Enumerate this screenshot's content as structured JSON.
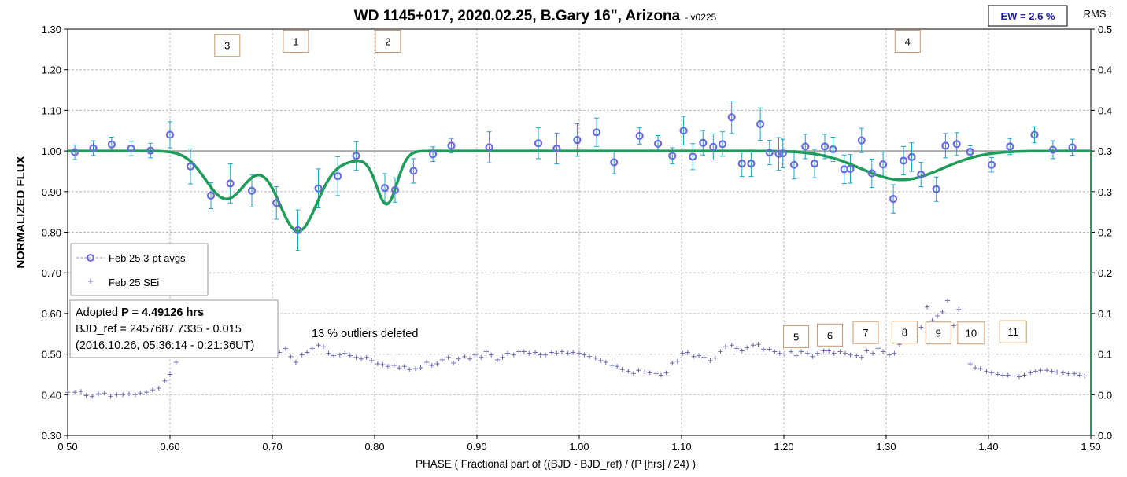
{
  "chart_data": {
    "type": "scatter",
    "title": "WD 1145+017, 2020.02.25, B.Gary 16\", Arizona",
    "subtitle": "- v0225",
    "ew_label": "EW = 2.6 %",
    "right_axis_title": "RMS i",
    "xlabel": "PHASE ( Fractional part of ((BJD - BJD_ref) / (P [hrs] / 24) )",
    "ylabel": "NORMALIZED FLUX",
    "xlim": [
      0.5,
      1.5
    ],
    "ylim": [
      0.3,
      1.3
    ],
    "y2lim": [
      0.0,
      0.5
    ],
    "x_ticks": [
      "0.50",
      "0.60",
      "0.70",
      "0.80",
      "0.90",
      "1.00",
      "1.10",
      "1.20",
      "1.30",
      "1.40",
      "1.50"
    ],
    "y_ticks": [
      "0.30",
      "0.40",
      "0.50",
      "0.60",
      "0.70",
      "0.80",
      "0.90",
      "1.00",
      "1.10",
      "1.20",
      "1.30"
    ],
    "y2_ticks": [
      "0.0",
      "0.0",
      "0.1",
      "0.1",
      "0.2",
      "0.2",
      "0.3",
      "0.3",
      "0.4",
      "0.4",
      "0.5"
    ],
    "grid": true,
    "legend": {
      "placement": "left",
      "entries": [
        "Feb 25 3-pt avgs",
        "Feb 25 SEi"
      ]
    },
    "info_box": {
      "line1_prefix": "Adopted ",
      "line1_bold": "P = 4.49126 hrs",
      "line2": "BJD_ref = 2457687.7335 - 0.015",
      "line3": "(2016.10.26, 05:36:14 - 0:21:36UT)"
    },
    "outlier_note": "13 % outliers deleted",
    "dip_labels": [
      {
        "label": "3",
        "x": 0.656,
        "y": 1.26
      },
      {
        "label": "1",
        "x": 0.723,
        "y": 1.27
      },
      {
        "label": "2",
        "x": 0.813,
        "y": 1.27
      },
      {
        "label": "4",
        "x": 1.321,
        "y": 1.27
      },
      {
        "label": "5",
        "x": 1.212,
        "y": 0.543
      },
      {
        "label": "6",
        "x": 1.245,
        "y": 0.547
      },
      {
        "label": "7",
        "x": 1.28,
        "y": 0.553
      },
      {
        "label": "8",
        "x": 1.318,
        "y": 0.554
      },
      {
        "label": "9",
        "x": 1.351,
        "y": 0.552
      },
      {
        "label": "10",
        "x": 1.383,
        "y": 0.552
      },
      {
        "label": "11",
        "x": 1.424,
        "y": 0.555
      }
    ],
    "model_baseline": 1.0,
    "series": [
      {
        "name": "Feb 25 3-pt avgs",
        "style": "circle",
        "color": "#6b6be0",
        "error_color": "#1ba3c6",
        "points": [
          [
            0.507,
            0.997,
            0.018
          ],
          [
            0.525,
            1.007,
            0.018
          ],
          [
            0.543,
            1.016,
            0.018
          ],
          [
            0.562,
            1.006,
            0.018
          ],
          [
            0.581,
            1.001,
            0.018
          ],
          [
            0.6,
            1.04,
            0.032
          ],
          [
            0.62,
            0.962,
            0.043
          ],
          [
            0.64,
            0.89,
            0.032
          ],
          [
            0.659,
            0.92,
            0.048
          ],
          [
            0.68,
            0.902,
            0.04
          ],
          [
            0.704,
            0.872,
            0.04
          ],
          [
            0.725,
            0.805,
            0.05
          ],
          [
            0.745,
            0.908,
            0.048
          ],
          [
            0.764,
            0.938,
            0.048
          ],
          [
            0.782,
            0.988,
            0.035
          ],
          [
            0.81,
            0.909,
            0.035
          ],
          [
            0.82,
            0.904,
            0.03
          ],
          [
            0.838,
            0.951,
            0.03
          ],
          [
            0.857,
            0.992,
            0.018
          ],
          [
            0.875,
            1.013,
            0.018
          ],
          [
            0.912,
            1.009,
            0.038
          ],
          [
            0.96,
            1.019,
            0.038
          ],
          [
            0.978,
            1.006,
            0.038
          ],
          [
            0.998,
            1.027,
            0.04
          ],
          [
            1.017,
            1.046,
            0.035
          ],
          [
            1.034,
            0.972,
            0.028
          ],
          [
            1.059,
            1.037,
            0.02
          ],
          [
            1.077,
            1.018,
            0.02
          ],
          [
            1.091,
            0.988,
            0.02
          ],
          [
            1.102,
            1.05,
            0.035
          ],
          [
            1.111,
            0.986,
            0.032
          ],
          [
            1.121,
            1.02,
            0.03
          ],
          [
            1.131,
            1.01,
            0.032
          ],
          [
            1.14,
            1.017,
            0.03
          ],
          [
            1.149,
            1.083,
            0.04
          ],
          [
            1.159,
            0.969,
            0.032
          ],
          [
            1.168,
            0.969,
            0.032
          ],
          [
            1.177,
            1.066,
            0.04
          ],
          [
            1.186,
            0.996,
            0.03
          ],
          [
            1.195,
            0.993,
            0.04
          ],
          [
            1.199,
            0.994,
            0.035
          ],
          [
            1.21,
            0.966,
            0.035
          ],
          [
            1.221,
            1.011,
            0.03
          ],
          [
            1.23,
            0.969,
            0.035
          ],
          [
            1.24,
            1.011,
            0.03
          ],
          [
            1.248,
            1.004,
            0.03
          ],
          [
            1.259,
            0.955,
            0.035
          ],
          [
            1.265,
            0.956,
            0.035
          ],
          [
            1.276,
            1.026,
            0.03
          ],
          [
            1.286,
            0.945,
            0.035
          ],
          [
            1.297,
            0.967,
            0.03
          ],
          [
            1.307,
            0.882,
            0.035
          ],
          [
            1.317,
            0.976,
            0.035
          ],
          [
            1.325,
            0.985,
            0.035
          ],
          [
            1.334,
            0.942,
            0.03
          ],
          [
            1.349,
            0.906,
            0.03
          ],
          [
            1.358,
            1.013,
            0.03
          ],
          [
            1.369,
            1.017,
            0.028
          ],
          [
            1.382,
            0.998,
            0.015
          ],
          [
            1.403,
            0.966,
            0.018
          ],
          [
            1.421,
            1.011,
            0.02
          ],
          [
            1.445,
            1.04,
            0.02
          ],
          [
            1.463,
            1.003,
            0.022
          ],
          [
            1.482,
            1.009,
            0.02
          ]
        ]
      },
      {
        "name": "Feb 25 SEi",
        "style": "plus",
        "color": "#6b6bb8",
        "axis": "right",
        "points": [
          [
            0.5,
            0.053
          ],
          [
            0.507,
            0.053
          ],
          [
            0.513,
            0.054
          ],
          [
            0.518,
            0.049
          ],
          [
            0.524,
            0.048
          ],
          [
            0.53,
            0.051
          ],
          [
            0.536,
            0.052
          ],
          [
            0.542,
            0.048
          ],
          [
            0.548,
            0.05
          ],
          [
            0.554,
            0.05
          ],
          [
            0.56,
            0.051
          ],
          [
            0.566,
            0.05
          ],
          [
            0.571,
            0.052
          ],
          [
            0.577,
            0.053
          ],
          [
            0.583,
            0.056
          ],
          [
            0.589,
            0.058
          ],
          [
            0.595,
            0.067
          ],
          [
            0.6,
            0.075
          ],
          [
            0.606,
            0.09
          ],
          [
            0.611,
            0.098
          ],
          [
            0.616,
            0.103
          ],
          [
            0.622,
            0.101
          ],
          [
            0.627,
            0.107
          ],
          [
            0.632,
            0.106
          ],
          [
            0.638,
            0.123
          ],
          [
            0.643,
            0.11
          ],
          [
            0.649,
            0.104
          ],
          [
            0.654,
            0.11
          ],
          [
            0.659,
            0.115
          ],
          [
            0.664,
            0.107
          ],
          [
            0.67,
            0.105
          ],
          [
            0.675,
            0.101
          ],
          [
            0.681,
            0.102
          ],
          [
            0.686,
            0.106
          ],
          [
            0.691,
            0.104
          ],
          [
            0.697,
            0.101
          ],
          [
            0.702,
            0.098
          ],
          [
            0.707,
            0.102
          ],
          [
            0.713,
            0.107
          ],
          [
            0.718,
            0.097
          ],
          [
            0.723,
            0.09
          ],
          [
            0.729,
            0.099
          ],
          [
            0.734,
            0.102
          ],
          [
            0.739,
            0.107
          ],
          [
            0.745,
            0.111
          ],
          [
            0.75,
            0.109
          ],
          [
            0.755,
            0.101
          ],
          [
            0.76,
            0.098
          ],
          [
            0.766,
            0.099
          ],
          [
            0.771,
            0.101
          ],
          [
            0.776,
            0.098
          ],
          [
            0.782,
            0.096
          ],
          [
            0.787,
            0.094
          ],
          [
            0.792,
            0.096
          ],
          [
            0.797,
            0.092
          ],
          [
            0.803,
            0.088
          ],
          [
            0.808,
            0.087
          ],
          [
            0.813,
            0.085
          ],
          [
            0.819,
            0.086
          ],
          [
            0.824,
            0.083
          ],
          [
            0.829,
            0.085
          ],
          [
            0.834,
            0.081
          ],
          [
            0.84,
            0.082
          ],
          [
            0.845,
            0.083
          ],
          [
            0.851,
            0.09
          ],
          [
            0.856,
            0.086
          ],
          [
            0.861,
            0.088
          ],
          [
            0.866,
            0.093
          ],
          [
            0.872,
            0.096
          ],
          [
            0.877,
            0.089
          ],
          [
            0.882,
            0.094
          ],
          [
            0.888,
            0.097
          ],
          [
            0.893,
            0.094
          ],
          [
            0.898,
            0.099
          ],
          [
            0.904,
            0.096
          ],
          [
            0.909,
            0.103
          ],
          [
            0.914,
            0.099
          ],
          [
            0.92,
            0.093
          ],
          [
            0.925,
            0.096
          ],
          [
            0.93,
            0.101
          ],
          [
            0.936,
            0.099
          ],
          [
            0.941,
            0.103
          ],
          [
            0.946,
            0.103
          ],
          [
            0.951,
            0.101
          ],
          [
            0.957,
            0.102
          ],
          [
            0.962,
            0.099
          ],
          [
            0.967,
            0.099
          ],
          [
            0.973,
            0.102
          ],
          [
            0.978,
            0.101
          ],
          [
            0.983,
            0.103
          ],
          [
            0.989,
            0.101
          ],
          [
            0.994,
            0.102
          ],
          [
            1.0,
            0.101
          ],
          [
            1.005,
            0.099
          ],
          [
            1.01,
            0.097
          ],
          [
            1.016,
            0.095
          ],
          [
            1.021,
            0.092
          ],
          [
            1.026,
            0.09
          ],
          [
            1.032,
            0.086
          ],
          [
            1.037,
            0.085
          ],
          [
            1.042,
            0.081
          ],
          [
            1.048,
            0.079
          ],
          [
            1.053,
            0.076
          ],
          [
            1.058,
            0.08
          ],
          [
            1.064,
            0.078
          ],
          [
            1.069,
            0.077
          ],
          [
            1.075,
            0.076
          ],
          [
            1.08,
            0.074
          ],
          [
            1.085,
            0.077
          ],
          [
            1.091,
            0.089
          ],
          [
            1.096,
            0.091
          ],
          [
            1.101,
            0.101
          ],
          [
            1.106,
            0.102
          ],
          [
            1.112,
            0.097
          ],
          [
            1.117,
            0.098
          ],
          [
            1.122,
            0.096
          ],
          [
            1.128,
            0.092
          ],
          [
            1.133,
            0.095
          ],
          [
            1.138,
            0.103
          ],
          [
            1.143,
            0.109
          ],
          [
            1.149,
            0.111
          ],
          [
            1.154,
            0.107
          ],
          [
            1.159,
            0.104
          ],
          [
            1.164,
            0.108
          ],
          [
            1.17,
            0.111
          ],
          [
            1.175,
            0.112
          ],
          [
            1.18,
            0.106
          ],
          [
            1.186,
            0.106
          ],
          [
            1.191,
            0.103
          ],
          [
            1.196,
            0.101
          ],
          [
            1.201,
            0.1
          ],
          [
            1.207,
            0.103
          ],
          [
            1.212,
            0.098
          ],
          [
            1.217,
            0.103
          ],
          [
            1.223,
            0.101
          ],
          [
            1.228,
            0.097
          ],
          [
            1.233,
            0.101
          ],
          [
            1.239,
            0.104
          ],
          [
            1.244,
            0.104
          ],
          [
            1.249,
            0.101
          ],
          [
            1.255,
            0.103
          ],
          [
            1.26,
            0.101
          ],
          [
            1.265,
            0.099
          ],
          [
            1.271,
            0.098
          ],
          [
            1.276,
            0.096
          ],
          [
            1.281,
            0.104
          ],
          [
            1.287,
            0.101
          ],
          [
            1.292,
            0.107
          ],
          [
            1.297,
            0.103
          ],
          [
            1.303,
            0.099
          ],
          [
            1.308,
            0.101
          ],
          [
            1.313,
            0.112
          ],
          [
            1.319,
            0.121
          ],
          [
            1.324,
            0.116
          ],
          [
            1.329,
            0.122
          ],
          [
            1.334,
            0.133
          ],
          [
            1.34,
            0.158
          ],
          [
            1.345,
            0.141
          ],
          [
            1.35,
            0.147
          ],
          [
            1.355,
            0.152
          ],
          [
            1.36,
            0.166
          ],
          [
            1.366,
            0.135
          ],
          [
            1.371,
            0.155
          ],
          [
            1.376,
            0.119
          ],
          [
            1.382,
            0.088
          ],
          [
            1.387,
            0.083
          ],
          [
            1.392,
            0.082
          ],
          [
            1.398,
            0.079
          ],
          [
            1.403,
            0.077
          ],
          [
            1.409,
            0.075
          ],
          [
            1.414,
            0.074
          ],
          [
            1.419,
            0.074
          ],
          [
            1.425,
            0.073
          ],
          [
            1.43,
            0.072
          ],
          [
            1.435,
            0.074
          ],
          [
            1.441,
            0.077
          ],
          [
            1.446,
            0.079
          ],
          [
            1.451,
            0.08
          ],
          [
            1.457,
            0.08
          ],
          [
            1.462,
            0.079
          ],
          [
            1.467,
            0.078
          ],
          [
            1.473,
            0.077
          ],
          [
            1.478,
            0.076
          ],
          [
            1.484,
            0.076
          ],
          [
            1.489,
            0.074
          ],
          [
            1.494,
            0.073
          ]
        ]
      },
      {
        "style": "model-line",
        "color": "#1f9c5a",
        "dips": [
          {
            "center": 0.655,
            "depth": 0.118,
            "width": 0.02
          },
          {
            "center": 0.725,
            "depth": 0.196,
            "width": 0.019
          },
          {
            "center": 0.812,
            "depth": 0.125,
            "width": 0.01
          },
          {
            "center": 0.776,
            "depth": 0.022,
            "width": 0.022
          },
          {
            "center": 1.315,
            "depth": 0.071,
            "width": 0.04
          }
        ]
      }
    ]
  }
}
